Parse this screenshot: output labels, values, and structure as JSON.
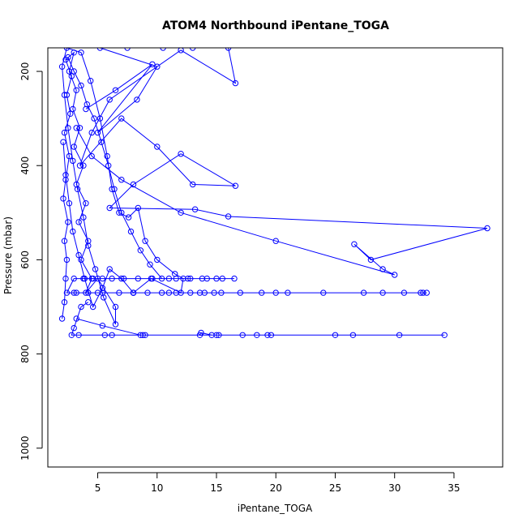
{
  "chart_data": {
    "type": "line",
    "title": "ATOM4 Northbound iPentane_TOGA",
    "xlabel": "iPentane_TOGA",
    "ylabel": "Pressure (mbar)",
    "xlim": [
      0.8,
      39.1
    ],
    "ylim": [
      1040,
      150
    ],
    "y_reversed": true,
    "x_ticks": [
      5,
      10,
      15,
      20,
      25,
      30,
      35
    ],
    "y_ticks": [
      200,
      400,
      600,
      800,
      1000
    ],
    "color": "#0000ff",
    "marker": "open-circle",
    "legend": "none",
    "grid": false,
    "series": [
      {
        "values": [
          [
            2.0,
            725
          ],
          [
            2.2,
            690
          ],
          [
            2.3,
            640
          ],
          [
            2.4,
            600
          ],
          [
            2.2,
            560
          ],
          [
            2.5,
            520
          ],
          [
            2.1,
            470
          ],
          [
            2.3,
            430
          ],
          [
            2.6,
            380
          ],
          [
            2.2,
            330
          ],
          [
            2.7,
            290
          ],
          [
            2.4,
            250
          ],
          [
            2.8,
            210
          ],
          [
            2.3,
            175
          ],
          [
            3.0,
            160
          ],
          [
            2.6,
            200
          ],
          [
            3.2,
            240
          ],
          [
            2.9,
            280
          ],
          [
            3.5,
            320
          ],
          [
            3.0,
            360
          ],
          [
            3.8,
            400
          ],
          [
            3.2,
            440
          ],
          [
            4.0,
            480
          ],
          [
            3.4,
            520
          ],
          [
            4.2,
            560
          ],
          [
            3.6,
            600
          ],
          [
            4.5,
            640
          ],
          [
            4.0,
            670
          ],
          [
            5.0,
            640
          ],
          [
            6.5,
            700
          ],
          [
            6.5,
            737
          ],
          [
            5.5,
            680
          ],
          [
            4.8,
            620
          ],
          [
            4.2,
            570
          ],
          [
            3.8,
            510
          ],
          [
            3.3,
            450
          ],
          [
            2.9,
            390
          ],
          [
            2.5,
            320
          ],
          [
            2.2,
            250
          ],
          [
            2.0,
            190
          ],
          [
            2.4,
            150
          ],
          [
            3.6,
            160
          ],
          [
            4.4,
            220
          ],
          [
            5.2,
            300
          ],
          [
            5.8,
            380
          ],
          [
            6.2,
            450
          ],
          [
            6.8,
            500
          ],
          [
            7.6,
            510
          ],
          [
            8.4,
            490
          ],
          [
            9.0,
            560
          ],
          [
            10.0,
            600
          ],
          [
            11.5,
            630
          ],
          [
            12.2,
            640
          ],
          [
            12.0,
            670
          ],
          [
            9.5,
            640
          ],
          [
            8.0,
            670
          ],
          [
            7.0,
            640
          ],
          [
            6.0,
            620
          ],
          [
            5.4,
            660
          ],
          [
            4.6,
            700
          ],
          [
            3.9,
            640
          ],
          [
            3.4,
            590
          ],
          [
            2.9,
            540
          ],
          [
            2.6,
            480
          ],
          [
            2.3,
            420
          ],
          [
            2.1,
            350
          ]
        ]
      },
      {
        "values": [
          [
            2.5,
            170
          ],
          [
            3.0,
            200
          ],
          [
            3.6,
            230
          ],
          [
            4.1,
            270
          ],
          [
            4.7,
            300
          ],
          [
            5.3,
            350
          ],
          [
            5.9,
            400
          ],
          [
            6.4,
            450
          ],
          [
            7.0,
            500
          ],
          [
            7.8,
            540
          ],
          [
            8.6,
            580
          ],
          [
            9.4,
            610
          ],
          [
            10.4,
            640
          ],
          [
            11.6,
            640
          ],
          [
            12.8,
            640
          ],
          [
            13.8,
            640
          ],
          [
            15.0,
            640
          ],
          [
            16.5,
            640
          ],
          [
            15.5,
            640
          ],
          [
            14.2,
            640
          ],
          [
            12.6,
            640
          ],
          [
            11.0,
            640
          ],
          [
            9.6,
            640
          ],
          [
            8.4,
            640
          ],
          [
            7.2,
            640
          ],
          [
            6.2,
            640
          ],
          [
            5.4,
            640
          ],
          [
            4.6,
            640
          ],
          [
            3.8,
            640
          ],
          [
            3.0,
            640
          ],
          [
            2.4,
            670
          ],
          [
            3.2,
            670
          ],
          [
            4.2,
            670
          ],
          [
            5.4,
            670
          ],
          [
            6.8,
            670
          ],
          [
            8.0,
            670
          ],
          [
            9.2,
            670
          ],
          [
            10.4,
            670
          ],
          [
            11.6,
            670
          ],
          [
            12.8,
            670
          ],
          [
            13.6,
            670
          ],
          [
            14.8,
            670
          ],
          [
            15.4,
            670
          ],
          [
            18.8,
            670
          ],
          [
            21.0,
            670
          ],
          [
            27.4,
            670
          ],
          [
            30.8,
            670
          ],
          [
            32.2,
            670
          ],
          [
            32.4,
            670
          ],
          [
            32.7,
            670
          ],
          [
            29.0,
            670
          ],
          [
            24.0,
            670
          ],
          [
            20.0,
            670
          ],
          [
            17.0,
            670
          ],
          [
            14.0,
            670
          ],
          [
            11.0,
            670
          ],
          [
            8.0,
            670
          ],
          [
            5.0,
            670
          ],
          [
            3.0,
            670
          ]
        ]
      },
      {
        "values": [
          [
            3.2,
            725
          ],
          [
            5.4,
            740
          ],
          [
            8.6,
            760
          ],
          [
            8.8,
            760
          ],
          [
            9.0,
            760
          ],
          [
            13.6,
            760
          ],
          [
            13.7,
            755
          ],
          [
            14.6,
            760
          ],
          [
            15.2,
            760
          ],
          [
            17.2,
            760
          ],
          [
            18.4,
            760
          ],
          [
            19.3,
            760
          ],
          [
            19.6,
            760
          ],
          [
            26.5,
            760
          ],
          [
            30.4,
            760
          ],
          [
            34.2,
            760
          ],
          [
            25.0,
            760
          ],
          [
            15.0,
            760
          ],
          [
            6.2,
            760
          ],
          [
            5.6,
            760
          ],
          [
            3.4,
            760
          ],
          [
            2.8,
            760
          ],
          [
            3.0,
            745
          ],
          [
            3.6,
            700
          ],
          [
            4.2,
            690
          ]
        ]
      },
      {
        "values": [
          [
            4.0,
            280
          ],
          [
            6.5,
            240
          ],
          [
            9.6,
            185
          ],
          [
            5.0,
            330
          ],
          [
            8.3,
            260
          ],
          [
            10.0,
            190
          ],
          [
            5.2,
            150
          ],
          [
            7.5,
            150
          ],
          [
            10.5,
            150
          ],
          [
            13.0,
            150
          ],
          [
            16.0,
            150
          ],
          [
            16.6,
            225
          ],
          [
            12.0,
            155
          ],
          [
            6.0,
            260
          ],
          [
            4.5,
            330
          ],
          [
            3.5,
            400
          ],
          [
            7.0,
            300
          ],
          [
            10.0,
            360
          ],
          [
            13.0,
            440
          ],
          [
            16.6,
            443
          ],
          [
            12.0,
            375
          ],
          [
            8.0,
            440
          ],
          [
            6.0,
            490
          ],
          [
            13.2,
            493
          ],
          [
            16.0,
            508
          ],
          [
            37.8,
            533
          ],
          [
            28.0,
            600
          ],
          [
            26.6,
            567
          ],
          [
            29.0,
            620
          ],
          [
            30.0,
            632
          ],
          [
            20.0,
            560
          ],
          [
            12.0,
            500
          ],
          [
            7.0,
            430
          ],
          [
            4.5,
            380
          ],
          [
            3.2,
            320
          ]
        ]
      }
    ]
  }
}
